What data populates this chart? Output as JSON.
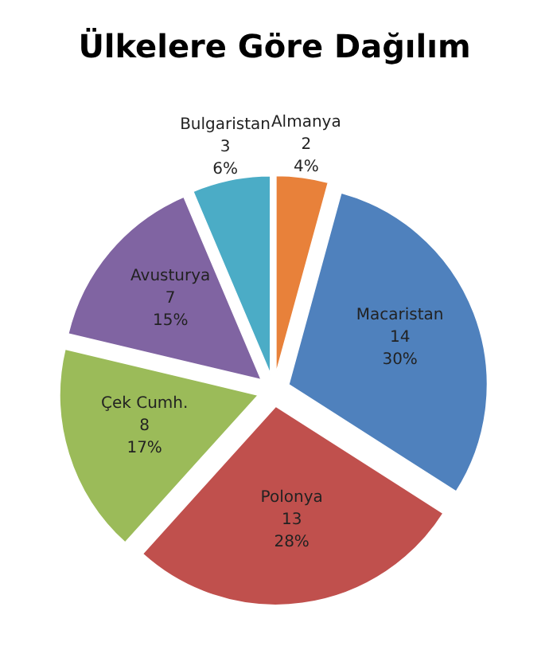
{
  "chart_data": {
    "type": "pie",
    "title": "Ülkelere Göre Dağılım",
    "categories": [
      "Almanya",
      "Macaristan",
      "Polonya",
      "Çek Cumh.",
      "Avusturya",
      "Bulgaristan"
    ],
    "values": [
      2,
      14,
      13,
      8,
      7,
      3
    ],
    "colors": [
      "#e8813a",
      "#4f81bd",
      "#c0504d",
      "#9bbb59",
      "#8064a2",
      "#4bacc6"
    ],
    "value_labels": [
      "2\n4%",
      "14\n30%",
      "13\n28%",
      "8\n17%",
      "7\n15%",
      "3\n6%"
    ]
  }
}
